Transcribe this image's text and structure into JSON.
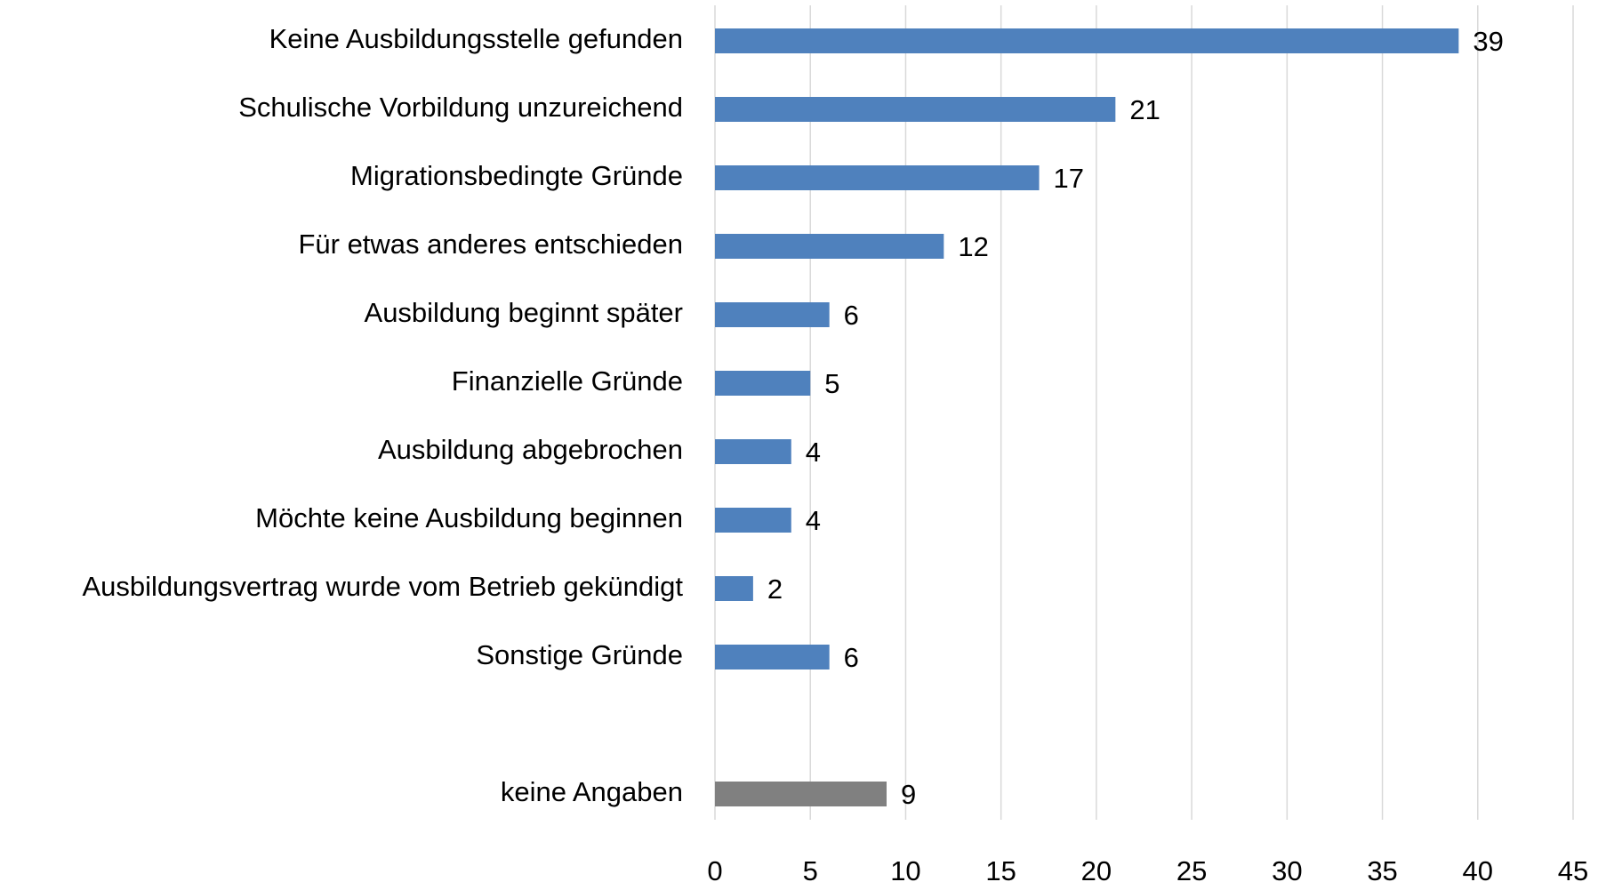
{
  "chart_data": {
    "type": "bar",
    "orientation": "horizontal",
    "categories": [
      "Keine Ausbildungsstelle gefunden",
      "Schulische Vorbildung unzureichend",
      "Migrationsbedingte Gründe",
      "Für etwas anderes entschieden",
      "Ausbildung beginnt später",
      "Finanzielle Gründe",
      "Ausbildung abgebrochen",
      "Möchte keine Ausbildung beginnen",
      "Ausbildungsvertrag wurde vom Betrieb gekündigt",
      "Sonstige Gründe",
      null,
      "keine Angaben"
    ],
    "values": [
      39,
      21,
      17,
      12,
      6,
      5,
      4,
      4,
      2,
      6,
      null,
      9
    ],
    "colors": [
      "#4f81bd",
      "#4f81bd",
      "#4f81bd",
      "#4f81bd",
      "#4f81bd",
      "#4f81bd",
      "#4f81bd",
      "#4f81bd",
      "#4f81bd",
      "#4f81bd",
      null,
      "#808080"
    ],
    "xlim": [
      0,
      45
    ],
    "xticks": [
      0,
      5,
      10,
      15,
      20,
      25,
      30,
      35,
      40,
      45
    ],
    "grid": true
  }
}
